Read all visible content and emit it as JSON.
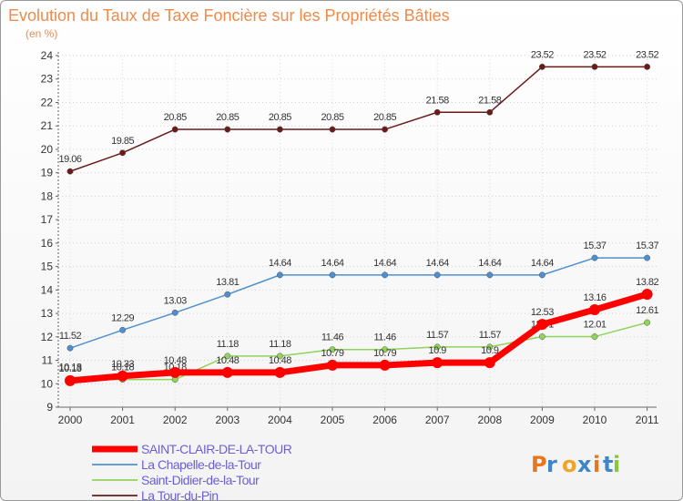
{
  "chart_data": {
    "type": "line",
    "title": "Evolution du Taux de Taxe Foncière sur les Propriétés Bâties",
    "subtitle": "(en %)",
    "xlabel": "",
    "ylabel": "(en %)",
    "ylim": [
      9,
      24
    ],
    "yticks": [
      "9",
      "10",
      "11",
      "12",
      "13",
      "14",
      "15",
      "16",
      "17",
      "18",
      "19",
      "20",
      "21",
      "22",
      "23",
      "24"
    ],
    "categories": [
      "2000",
      "2001",
      "2002",
      "2003",
      "2004",
      "2005",
      "2006",
      "2007",
      "2008",
      "2009",
      "2010",
      "2011"
    ],
    "series": [
      {
        "name": "La Tour-du-Pin",
        "color": "#6b1a1a",
        "values": [
          19.06,
          19.85,
          20.85,
          20.85,
          20.85,
          20.85,
          20.85,
          21.58,
          21.58,
          23.52,
          23.52,
          23.52
        ],
        "labels": [
          "19.06",
          "19.85",
          "20.85",
          "20.85",
          "20.85",
          "20.85",
          "20.85",
          "21.58",
          "21.58",
          "23.52",
          "23.52",
          "23.52"
        ]
      },
      {
        "name": "La Chapelle-de-la-Tour",
        "color": "#4f8fcf",
        "values": [
          11.52,
          12.29,
          13.03,
          13.81,
          14.64,
          14.64,
          14.64,
          14.64,
          14.64,
          14.64,
          15.37,
          15.37
        ],
        "labels": [
          "11.52",
          "12.29",
          "13.03",
          "13.81",
          "14.64",
          "14.64",
          "14.64",
          "14.64",
          "14.64",
          "14.64",
          "15.37",
          "15.37"
        ]
      },
      {
        "name": "Saint-Didier-de-la-Tour",
        "color": "#90d45a",
        "values": [
          10.18,
          10.18,
          10.18,
          11.18,
          11.18,
          11.46,
          11.46,
          11.57,
          11.57,
          12.01,
          12.01,
          12.61
        ],
        "labels": [
          "10.18",
          "10.18",
          "10.18",
          "11.18",
          "11.18",
          "11.46",
          "11.46",
          "11.57",
          "11.57",
          "12.01",
          "12.01",
          "12.61"
        ]
      },
      {
        "name": "SAINT-CLAIR-DE-LA-TOUR",
        "color": "#ff0000",
        "values": [
          10.13,
          10.33,
          10.48,
          10.48,
          10.48,
          10.79,
          10.79,
          10.9,
          10.9,
          12.53,
          13.16,
          13.82
        ],
        "labels": [
          "10.13",
          "10.33",
          "10.48",
          "10.48",
          "10.48",
          "10.79",
          "10.79",
          "10.9",
          "10.9",
          "12.53",
          "13.16",
          "13.82"
        ]
      }
    ],
    "legend": [
      {
        "name": "SAINT-CLAIR-DE-LA-TOUR",
        "color": "#ff0000"
      },
      {
        "name": "La Chapelle-de-la-Tour",
        "color": "#4f8fcf"
      },
      {
        "name": "Saint-Didier-de-la-Tour",
        "color": "#90d45a"
      },
      {
        "name": "La Tour-du-Pin",
        "color": "#6b1a1a"
      }
    ],
    "legend_position": "bottom-left"
  },
  "logo": {
    "text": "Proxiti"
  }
}
